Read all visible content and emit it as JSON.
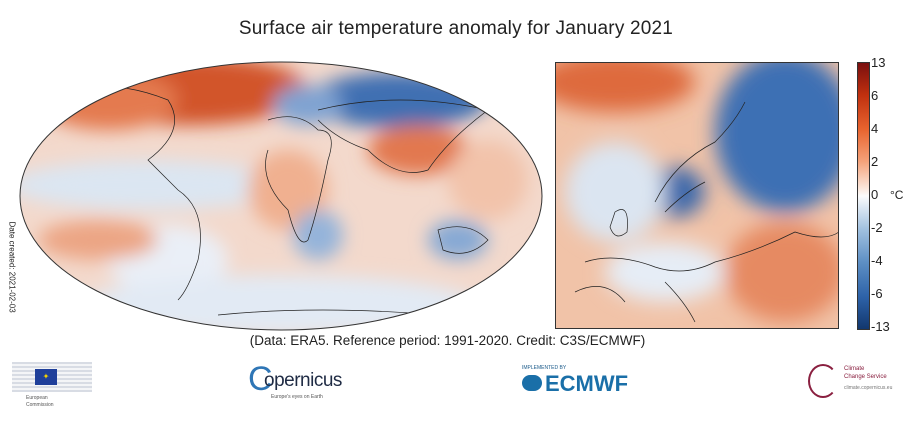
{
  "title": "Surface air temperature anomaly for January 2021",
  "date_created": "Date created: 2021-02-03",
  "caption": "(Data: ERA5.  Reference period: 1991-2020.  Credit: C3S/ECMWF)",
  "colorbar": {
    "unit": "°C",
    "ticks": [
      "13",
      "6",
      "4",
      "2",
      "0",
      "-2",
      "-4",
      "-6",
      "-13"
    ],
    "colors": {
      "max": "#7a0f0f",
      "warm": "#e8642f",
      "zero": "#fbfbfb",
      "cool": "#5d8fc4",
      "min": "#12376e"
    }
  },
  "logos": {
    "ec": {
      "line1": "European",
      "line2": "Commission"
    },
    "copernicus": {
      "name": "opernicus",
      "tagline": "Europe's eyes on Earth"
    },
    "ecmwf": {
      "implemented": "IMPLEMENTED BY",
      "name": "ECMWF"
    },
    "c3s": {
      "line1": "Climate",
      "line2": "Change Service",
      "line3": "climate.copernicus.eu"
    }
  }
}
